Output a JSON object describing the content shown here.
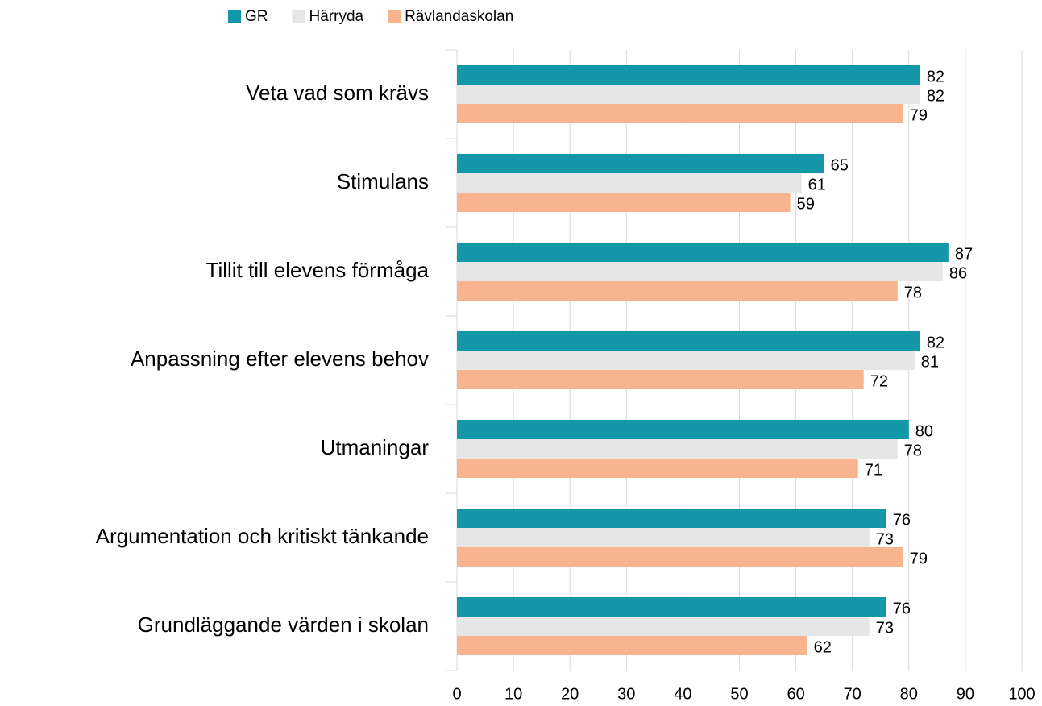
{
  "chart_data": {
    "type": "barh",
    "categories": [
      "Veta vad som krävs",
      "Stimulans",
      "Tillit till elevens förmåga",
      "Anpassning efter elevens behov",
      "Utmaningar",
      "Argumentation och kritiskt tänkande",
      "Grundläggande värden i skolan"
    ],
    "series": [
      {
        "name": "GR",
        "color": "#1497a8",
        "values": [
          82,
          65,
          87,
          82,
          80,
          76,
          76
        ]
      },
      {
        "name": "Härryda",
        "color": "#e6e6e6",
        "values": [
          82,
          61,
          86,
          81,
          78,
          73,
          73
        ]
      },
      {
        "name": "Rävlandaskolan",
        "color": "#f7b48e",
        "values": [
          79,
          59,
          78,
          72,
          71,
          79,
          62
        ]
      }
    ],
    "xlim": [
      0,
      100
    ],
    "xticks": [
      0,
      10,
      20,
      30,
      40,
      50,
      60,
      70,
      80,
      90,
      100
    ],
    "grid": true,
    "legend": "top"
  }
}
